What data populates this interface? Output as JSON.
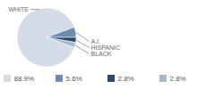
{
  "chart_data": {
    "type": "pie",
    "categories": [
      "WHITE",
      "A.I.",
      "HISPANIC",
      "BLACK"
    ],
    "values": [
      88.9,
      5.6,
      2.8,
      2.8
    ],
    "value_labels": [
      "88.9%",
      "5.6%",
      "2.8%",
      "2.8%"
    ],
    "colors": [
      "#d3dce7",
      "#6d8cb2",
      "#2d4a6c",
      "#a9b9cc"
    ],
    "legend": "bottom"
  }
}
